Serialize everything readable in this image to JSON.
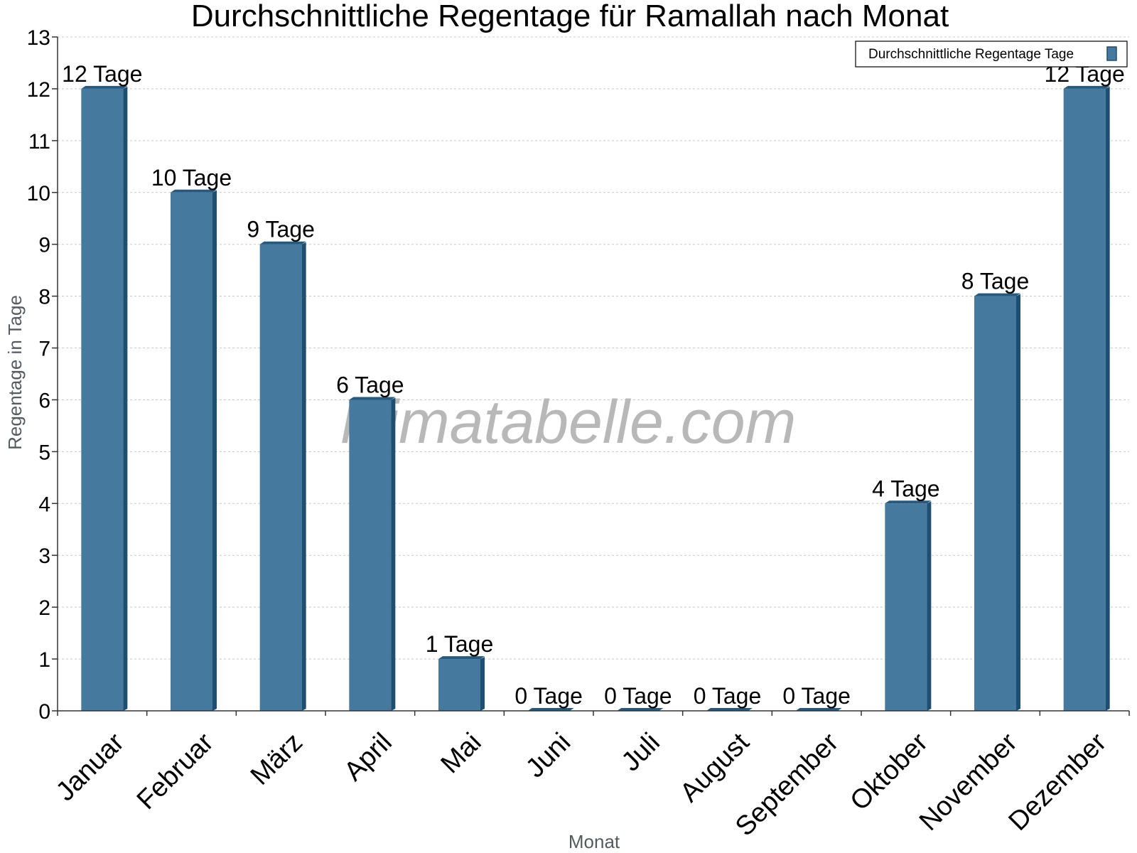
{
  "chart_data": {
    "type": "bar",
    "title": "Durchschnittliche Regentage für Ramallah nach Monat",
    "xlabel": "Monat",
    "ylabel": "Regentage in Tage",
    "ylim": [
      0,
      13
    ],
    "yticks": [
      0,
      1,
      2,
      3,
      4,
      5,
      6,
      7,
      8,
      9,
      10,
      11,
      12,
      13
    ],
    "categories": [
      "Januar",
      "Februar",
      "März",
      "April",
      "Mai",
      "Juni",
      "Juli",
      "August",
      "September",
      "Oktober",
      "November",
      "Dezember"
    ],
    "series": [
      {
        "name": "Durchschnittliche Regentage Tage",
        "values": [
          12,
          10,
          9,
          6,
          1,
          0,
          0,
          0,
          0,
          4,
          8,
          12
        ],
        "labels": [
          "12 Tage",
          "10 Tage",
          "9 Tage",
          "6 Tage",
          "1 Tage",
          "0 Tage",
          "0 Tage",
          "0 Tage",
          "0 Tage",
          "4 Tage",
          "8 Tage",
          "12 Tage"
        ]
      }
    ],
    "grid": true,
    "legend_position": "top-right",
    "watermark": "klimatabelle.com",
    "colors": {
      "bar_front": "#457a9e",
      "bar_side": "#1e4e72",
      "bar_top": "#245a80",
      "grid": "#c8c8c8",
      "axis": "#333333"
    }
  }
}
